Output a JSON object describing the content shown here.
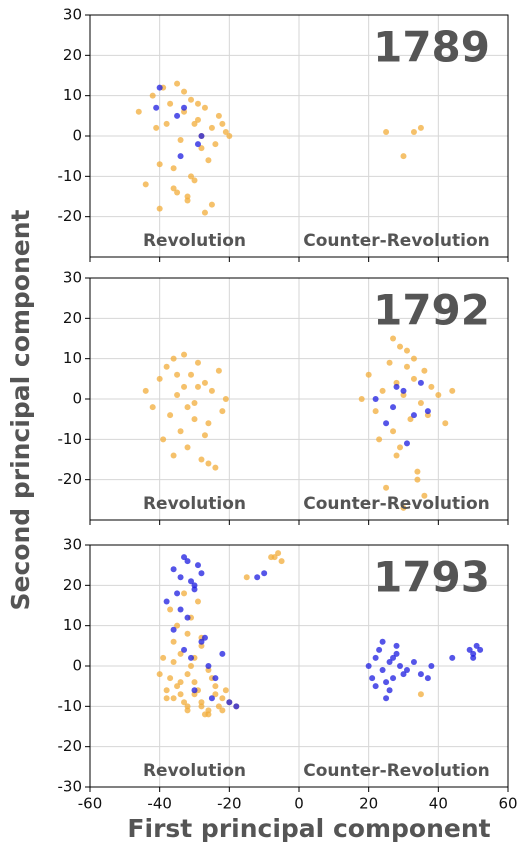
{
  "chart_data": [
    {
      "type": "scatter",
      "title": "1789",
      "annotations": [
        "Revolution",
        "Counter-Revolution"
      ],
      "xlim": [
        -60,
        60
      ],
      "xticks": [
        -60,
        -40,
        -20,
        0,
        20,
        40,
        60
      ],
      "ylim": [
        -30,
        30
      ],
      "yticks": [
        -20,
        -10,
        0,
        10,
        20,
        30
      ],
      "grid": true,
      "series": [
        {
          "color": "#f2ac3a",
          "x": [
            -42,
            -39,
            -37,
            -35,
            -33,
            -31,
            -29,
            -27,
            -25,
            -23,
            -21,
            -20,
            -34,
            -30,
            -28,
            -26,
            -24,
            -38,
            -36,
            -32,
            -44,
            -40,
            -35,
            -32,
            -30,
            -27,
            -46,
            -41,
            -36,
            -31,
            -33,
            -28,
            -25,
            25,
            30,
            33,
            35,
            -22,
            -29,
            -40
          ],
          "values": [
            10,
            12,
            8,
            13,
            6,
            9,
            4,
            7,
            2,
            5,
            1,
            0,
            -1,
            3,
            -3,
            -6,
            -2,
            3,
            -13,
            -15,
            -12,
            -18,
            -14,
            -16,
            -11,
            -19,
            6,
            2,
            -8,
            -10,
            11,
            0,
            -17,
            1,
            -5,
            1,
            2,
            3,
            8,
            -7
          ]
        },
        {
          "color": "#1c1ce0",
          "x": [
            -40,
            -41,
            -35,
            -33,
            -34,
            -29,
            -28
          ],
          "values": [
            12,
            7,
            5,
            7,
            -5,
            -2,
            0
          ]
        }
      ]
    },
    {
      "type": "scatter",
      "title": "1792",
      "annotations": [
        "Revolution",
        "Counter-Revolution"
      ],
      "ylabel": "Second principal component",
      "xlim": [
        -60,
        60
      ],
      "xticks": [
        -60,
        -40,
        -20,
        0,
        20,
        40,
        60
      ],
      "ylim": [
        -30,
        30
      ],
      "yticks": [
        -20,
        -10,
        0,
        10,
        20,
        30
      ],
      "grid": true,
      "series": [
        {
          "color": "#f2ac3a",
          "x": [
            -44,
            -42,
            -40,
            -38,
            -37,
            -36,
            -35,
            -34,
            -33,
            -32,
            -31,
            -30,
            -29,
            -28,
            -27,
            -26,
            -25,
            -24,
            -23,
            -22,
            -21,
            -39,
            -36,
            -33,
            -30,
            -27,
            -35,
            -32,
            -29,
            -26,
            20,
            22,
            24,
            26,
            27,
            28,
            29,
            30,
            31,
            32,
            33,
            34,
            35,
            36,
            37,
            38,
            40,
            42,
            44,
            18,
            25,
            27,
            30,
            33,
            36,
            28,
            31,
            34,
            23,
            29
          ],
          "values": [
            2,
            -2,
            5,
            8,
            -4,
            10,
            1,
            -8,
            3,
            -12,
            6,
            -1,
            9,
            -15,
            4,
            -6,
            2,
            -17,
            7,
            -3,
            0,
            -10,
            -14,
            11,
            -5,
            -9,
            6,
            -2,
            3,
            -16,
            6,
            -3,
            2,
            9,
            -8,
            4,
            -12,
            1,
            12,
            -5,
            5,
            -20,
            -1,
            7,
            -4,
            3,
            1,
            -6,
            2,
            0,
            -22,
            15,
            -27,
            10,
            -24,
            -14,
            8,
            -18,
            -10,
            13
          ]
        },
        {
          "color": "#1c1ce0",
          "x": [
            22,
            25,
            30,
            33,
            35,
            28,
            31,
            37,
            27
          ],
          "values": [
            0,
            -6,
            2,
            -4,
            4,
            3,
            -11,
            -3,
            -2
          ]
        }
      ]
    },
    {
      "type": "scatter",
      "title": "1793",
      "annotations": [
        "Revolution",
        "Counter-Revolution"
      ],
      "xlabel": "First principal component",
      "xlim": [
        -60,
        60
      ],
      "xticks": [
        -60,
        -40,
        -20,
        0,
        20,
        40,
        60
      ],
      "ylim": [
        -30,
        30
      ],
      "yticks": [
        -30,
        -20,
        -10,
        0,
        10,
        20,
        30
      ],
      "grid": true,
      "series": [
        {
          "color": "#f2ac3a",
          "x": [
            -40,
            -38,
            -36,
            -34,
            -32,
            -30,
            -28,
            -26,
            -24,
            -22,
            -39,
            -37,
            -35,
            -33,
            -31,
            -29,
            -27,
            -25,
            -23,
            -21,
            -38,
            -36,
            -34,
            -32,
            -30,
            -28,
            -26,
            -24,
            -22,
            -20,
            -37,
            -35,
            -33,
            -31,
            -29,
            -36,
            -34,
            -32,
            -30,
            -28,
            -7,
            -6,
            -5,
            -8,
            -15,
            -26,
            -28,
            -32,
            35,
            -18
          ],
          "values": [
            -2,
            -6,
            -8,
            -4,
            -10,
            -7,
            -9,
            -11,
            -5,
            -8,
            2,
            -3,
            -5,
            -9,
            0,
            -6,
            -12,
            -3,
            -10,
            -6,
            -8,
            1,
            -7,
            -2,
            -4,
            -10,
            -1,
            -7,
            -11,
            -9,
            14,
            10,
            18,
            12,
            16,
            6,
            3,
            8,
            2,
            5,
            27,
            28,
            26,
            27,
            22,
            -12,
            7,
            -11,
            -7,
            -10
          ]
        },
        {
          "color": "#1c1ce0",
          "x": [
            -36,
            -34,
            -32,
            -30,
            -28,
            -35,
            -33,
            -31,
            -29,
            -38,
            -34,
            -32,
            -30,
            -36,
            -33,
            -31,
            -28,
            -26,
            -24,
            -22,
            -30,
            -27,
            -25,
            -20,
            -18,
            20,
            22,
            24,
            26,
            28,
            30,
            21,
            23,
            25,
            27,
            29,
            31,
            33,
            35,
            24,
            26,
            28,
            22,
            25,
            27,
            49,
            50,
            51,
            52,
            50,
            -10,
            -12,
            44,
            37,
            38
          ],
          "values": [
            24,
            22,
            26,
            20,
            23,
            18,
            27,
            21,
            25,
            16,
            14,
            12,
            19,
            9,
            4,
            2,
            6,
            0,
            -3,
            3,
            -6,
            7,
            -8,
            -9,
            -10,
            0,
            2,
            -1,
            1,
            3,
            -2,
            -3,
            4,
            -4,
            2,
            0,
            -1,
            1,
            -2,
            6,
            -6,
            5,
            -5,
            -8,
            -3,
            4,
            3,
            5,
            4,
            2,
            23,
            22,
            2,
            -3,
            0
          ]
        }
      ]
    }
  ]
}
